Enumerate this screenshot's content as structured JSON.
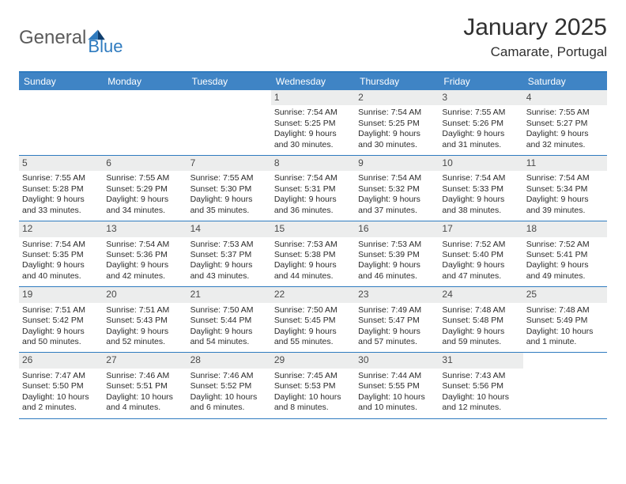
{
  "brand": {
    "text_a": "General",
    "text_b": "Blue"
  },
  "title": {
    "month": "January 2025",
    "location": "Camarate, Portugal"
  },
  "colors": {
    "accent": "#2f7bbf",
    "header_bg": "#3f84c5",
    "daynum_bg": "#eceded",
    "text": "#2b2b2b"
  },
  "dow": [
    "Sunday",
    "Monday",
    "Tuesday",
    "Wednesday",
    "Thursday",
    "Friday",
    "Saturday"
  ],
  "weeks": [
    [
      null,
      null,
      null,
      {
        "n": "1",
        "sr": "Sunrise: 7:54 AM",
        "ss": "Sunset: 5:25 PM",
        "dl": "Daylight: 9 hours and 30 minutes."
      },
      {
        "n": "2",
        "sr": "Sunrise: 7:54 AM",
        "ss": "Sunset: 5:25 PM",
        "dl": "Daylight: 9 hours and 30 minutes."
      },
      {
        "n": "3",
        "sr": "Sunrise: 7:55 AM",
        "ss": "Sunset: 5:26 PM",
        "dl": "Daylight: 9 hours and 31 minutes."
      },
      {
        "n": "4",
        "sr": "Sunrise: 7:55 AM",
        "ss": "Sunset: 5:27 PM",
        "dl": "Daylight: 9 hours and 32 minutes."
      }
    ],
    [
      {
        "n": "5",
        "sr": "Sunrise: 7:55 AM",
        "ss": "Sunset: 5:28 PM",
        "dl": "Daylight: 9 hours and 33 minutes."
      },
      {
        "n": "6",
        "sr": "Sunrise: 7:55 AM",
        "ss": "Sunset: 5:29 PM",
        "dl": "Daylight: 9 hours and 34 minutes."
      },
      {
        "n": "7",
        "sr": "Sunrise: 7:55 AM",
        "ss": "Sunset: 5:30 PM",
        "dl": "Daylight: 9 hours and 35 minutes."
      },
      {
        "n": "8",
        "sr": "Sunrise: 7:54 AM",
        "ss": "Sunset: 5:31 PM",
        "dl": "Daylight: 9 hours and 36 minutes."
      },
      {
        "n": "9",
        "sr": "Sunrise: 7:54 AM",
        "ss": "Sunset: 5:32 PM",
        "dl": "Daylight: 9 hours and 37 minutes."
      },
      {
        "n": "10",
        "sr": "Sunrise: 7:54 AM",
        "ss": "Sunset: 5:33 PM",
        "dl": "Daylight: 9 hours and 38 minutes."
      },
      {
        "n": "11",
        "sr": "Sunrise: 7:54 AM",
        "ss": "Sunset: 5:34 PM",
        "dl": "Daylight: 9 hours and 39 minutes."
      }
    ],
    [
      {
        "n": "12",
        "sr": "Sunrise: 7:54 AM",
        "ss": "Sunset: 5:35 PM",
        "dl": "Daylight: 9 hours and 40 minutes."
      },
      {
        "n": "13",
        "sr": "Sunrise: 7:54 AM",
        "ss": "Sunset: 5:36 PM",
        "dl": "Daylight: 9 hours and 42 minutes."
      },
      {
        "n": "14",
        "sr": "Sunrise: 7:53 AM",
        "ss": "Sunset: 5:37 PM",
        "dl": "Daylight: 9 hours and 43 minutes."
      },
      {
        "n": "15",
        "sr": "Sunrise: 7:53 AM",
        "ss": "Sunset: 5:38 PM",
        "dl": "Daylight: 9 hours and 44 minutes."
      },
      {
        "n": "16",
        "sr": "Sunrise: 7:53 AM",
        "ss": "Sunset: 5:39 PM",
        "dl": "Daylight: 9 hours and 46 minutes."
      },
      {
        "n": "17",
        "sr": "Sunrise: 7:52 AM",
        "ss": "Sunset: 5:40 PM",
        "dl": "Daylight: 9 hours and 47 minutes."
      },
      {
        "n": "18",
        "sr": "Sunrise: 7:52 AM",
        "ss": "Sunset: 5:41 PM",
        "dl": "Daylight: 9 hours and 49 minutes."
      }
    ],
    [
      {
        "n": "19",
        "sr": "Sunrise: 7:51 AM",
        "ss": "Sunset: 5:42 PM",
        "dl": "Daylight: 9 hours and 50 minutes."
      },
      {
        "n": "20",
        "sr": "Sunrise: 7:51 AM",
        "ss": "Sunset: 5:43 PM",
        "dl": "Daylight: 9 hours and 52 minutes."
      },
      {
        "n": "21",
        "sr": "Sunrise: 7:50 AM",
        "ss": "Sunset: 5:44 PM",
        "dl": "Daylight: 9 hours and 54 minutes."
      },
      {
        "n": "22",
        "sr": "Sunrise: 7:50 AM",
        "ss": "Sunset: 5:45 PM",
        "dl": "Daylight: 9 hours and 55 minutes."
      },
      {
        "n": "23",
        "sr": "Sunrise: 7:49 AM",
        "ss": "Sunset: 5:47 PM",
        "dl": "Daylight: 9 hours and 57 minutes."
      },
      {
        "n": "24",
        "sr": "Sunrise: 7:48 AM",
        "ss": "Sunset: 5:48 PM",
        "dl": "Daylight: 9 hours and 59 minutes."
      },
      {
        "n": "25",
        "sr": "Sunrise: 7:48 AM",
        "ss": "Sunset: 5:49 PM",
        "dl": "Daylight: 10 hours and 1 minute."
      }
    ],
    [
      {
        "n": "26",
        "sr": "Sunrise: 7:47 AM",
        "ss": "Sunset: 5:50 PM",
        "dl": "Daylight: 10 hours and 2 minutes."
      },
      {
        "n": "27",
        "sr": "Sunrise: 7:46 AM",
        "ss": "Sunset: 5:51 PM",
        "dl": "Daylight: 10 hours and 4 minutes."
      },
      {
        "n": "28",
        "sr": "Sunrise: 7:46 AM",
        "ss": "Sunset: 5:52 PM",
        "dl": "Daylight: 10 hours and 6 minutes."
      },
      {
        "n": "29",
        "sr": "Sunrise: 7:45 AM",
        "ss": "Sunset: 5:53 PM",
        "dl": "Daylight: 10 hours and 8 minutes."
      },
      {
        "n": "30",
        "sr": "Sunrise: 7:44 AM",
        "ss": "Sunset: 5:55 PM",
        "dl": "Daylight: 10 hours and 10 minutes."
      },
      {
        "n": "31",
        "sr": "Sunrise: 7:43 AM",
        "ss": "Sunset: 5:56 PM",
        "dl": "Daylight: 10 hours and 12 minutes."
      },
      null
    ]
  ]
}
